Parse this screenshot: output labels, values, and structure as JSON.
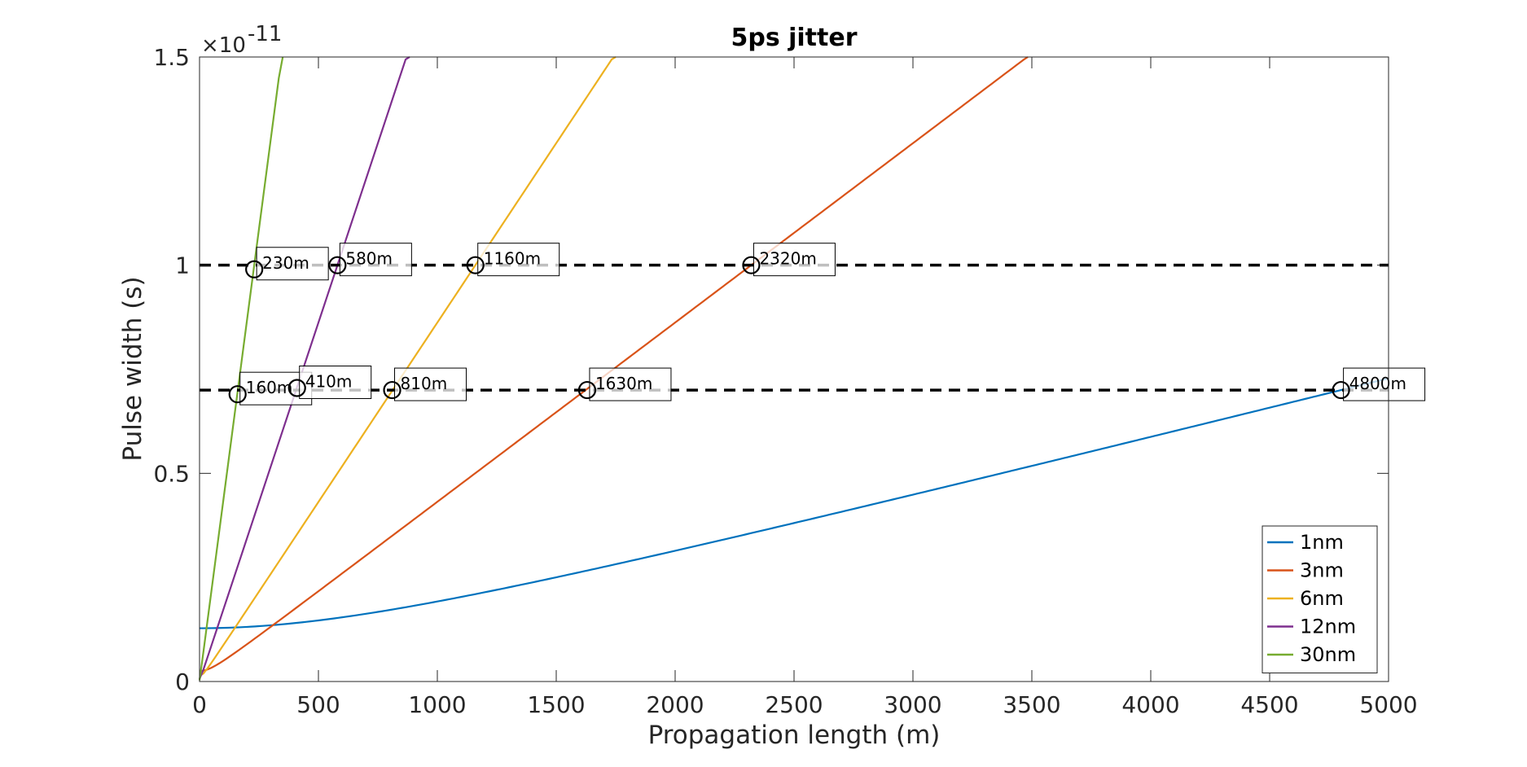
{
  "chart_data": {
    "type": "line",
    "title": "5ps jitter",
    "xlabel": "Propagation length (m)",
    "ylabel": "Pulse width (s)",
    "y_exponent_label": "×10",
    "y_exponent_power": "-11",
    "xlim": [
      0,
      5000
    ],
    "ylim": [
      0,
      1.5e-11
    ],
    "x_ticks": [
      0,
      500,
      1000,
      1500,
      2000,
      2500,
      3000,
      3500,
      4000,
      4500,
      5000
    ],
    "x_tick_labels": [
      "0",
      "500",
      "1000",
      "1500",
      "2000",
      "2500",
      "3000",
      "3500",
      "4000",
      "4500",
      "5000"
    ],
    "y_ticks": [
      0,
      5e-12,
      1e-11,
      1.5e-11
    ],
    "y_tick_labels": [
      "0",
      "0.5",
      "1",
      "1.5"
    ],
    "grid": false,
    "legend_position": "bottom-right",
    "series": [
      {
        "name": "1nm",
        "color": "#0072BD",
        "initial_width": 1.28e-12,
        "width_at": [
          4800,
          7e-12
        ]
      },
      {
        "name": "3nm",
        "color": "#D95319",
        "initial_width": 2.5e-13,
        "width_at": [
          2320,
          1e-11
        ]
      },
      {
        "name": "6nm",
        "color": "#EDB120",
        "initial_width": 1.3e-13,
        "width_at": [
          1160,
          1e-11
        ]
      },
      {
        "name": "12nm",
        "color": "#7E2F8E",
        "initial_width": 6e-14,
        "width_at": [
          580,
          1e-11
        ]
      },
      {
        "name": "30nm",
        "color": "#77AC30",
        "initial_width": 3e-14,
        "width_at": [
          230,
          1e-11
        ]
      }
    ],
    "reference_lines": [
      {
        "y": 1e-11,
        "style": "dashed",
        "color": "#000000"
      },
      {
        "y": 7e-12,
        "style": "dashed",
        "color": "#000000"
      }
    ],
    "annotations": [
      {
        "x": 230,
        "y": 9.9e-12,
        "label": "230m"
      },
      {
        "x": 580,
        "y": 1e-11,
        "label": "580m"
      },
      {
        "x": 1160,
        "y": 1e-11,
        "label": "1160m"
      },
      {
        "x": 2320,
        "y": 1e-11,
        "label": "2320m"
      },
      {
        "x": 160,
        "y": 6.9e-12,
        "label": "160m"
      },
      {
        "x": 410,
        "y": 7.05e-12,
        "label": "410m"
      },
      {
        "x": 810,
        "y": 7e-12,
        "label": "810m"
      },
      {
        "x": 1630,
        "y": 7e-12,
        "label": "1630m"
      },
      {
        "x": 4800,
        "y": 7e-12,
        "label": "4800m"
      }
    ]
  }
}
